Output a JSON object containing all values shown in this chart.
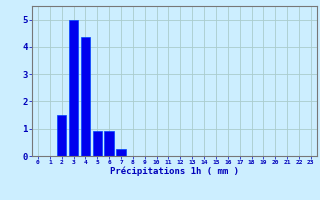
{
  "values": [
    0,
    0,
    1.5,
    5,
    4.35,
    0.9,
    0.9,
    0.25,
    0,
    0,
    0,
    0,
    0,
    0,
    0,
    0,
    0,
    0,
    0,
    0,
    0,
    0,
    0,
    0
  ],
  "bar_color": "#0000ee",
  "bar_edge_color": "#0044ff",
  "background_color": "#cceeff",
  "grid_color": "#aacccc",
  "xlabel": "Précipitations 1h ( mm )",
  "xlabel_color": "#0000bb",
  "tick_color": "#0000bb",
  "axis_color": "#777777",
  "ylim": [
    0,
    5.5
  ],
  "yticks": [
    0,
    1,
    2,
    3,
    4,
    5
  ],
  "num_bars": 24,
  "figsize": [
    3.2,
    2.0
  ],
  "dpi": 100
}
